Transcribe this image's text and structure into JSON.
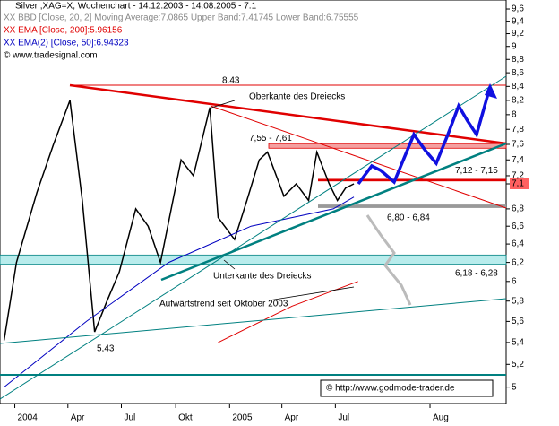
{
  "chart_data": {
    "type": "line",
    "title": "Silver ,XAG=X, Wochenchart - 14.12.2003 - 14.08.2005 - 7.1",
    "legend": [
      {
        "text": "XX BBD [Close, 20, 2] Moving Average:7.0865 Upper Band:7.41745 Lower Band:6.75555",
        "color": "#999999"
      },
      {
        "text": "XX EMA [Close, 200]:5.96156",
        "color": "#e00000"
      },
      {
        "text": "XX EMA(2) [Close, 50]:6.94323",
        "color": "#0000c0"
      }
    ],
    "source": "© www.tradesignal.com",
    "copyright": "© http://www.godmode-trader.de",
    "log_scale": true,
    "xlim": [
      -1,
      122
    ],
    "ylim": [
      4.86,
      9.75
    ],
    "xticks": [
      {
        "value": 2.6,
        "label": "2004"
      },
      {
        "value": 15.5,
        "label": "Apr"
      },
      {
        "value": 28.5,
        "label": "Jul"
      },
      {
        "value": 41.7,
        "label": "Okt"
      },
      {
        "value": 54.8,
        "label": "2005"
      },
      {
        "value": 67.5,
        "label": "Apr"
      },
      {
        "value": 80.5,
        "label": "Jul"
      },
      {
        "value": 103.5,
        "label": "Aug"
      }
    ],
    "yticks": [
      5,
      {
        "value": 5.2,
        "label": "5,2"
      },
      {
        "value": 5.4,
        "label": "5,4"
      },
      {
        "value": 5.6,
        "label": "5,6"
      },
      {
        "value": 5.8,
        "label": "5,8"
      },
      6,
      {
        "value": 6.2,
        "label": "6,2"
      },
      {
        "value": 6.4,
        "label": "6,4"
      },
      {
        "value": 6.6,
        "label": "6,6"
      },
      {
        "value": 6.8,
        "label": "6,8"
      },
      {
        "value": 7.1,
        "label": "7,1"
      },
      {
        "value": 7.2,
        "label": "7,2"
      },
      {
        "value": 7.4,
        "label": "7,4"
      },
      {
        "value": 7.6,
        "label": "7,6"
      },
      {
        "value": 7.8,
        "label": "7,8"
      },
      8,
      {
        "value": 8.2,
        "label": "8,2"
      },
      {
        "value": 8.4,
        "label": "8,4"
      },
      {
        "value": 8.6,
        "label": "8,6"
      },
      {
        "value": 8.8,
        "label": "8,8"
      },
      9,
      {
        "value": 9.2,
        "label": "9,2"
      },
      {
        "value": 9.4,
        "label": "9,4"
      },
      {
        "value": 9.6,
        "label": "9,6"
      }
    ],
    "series": [
      {
        "name": "Silver",
        "color": "#000000",
        "x": [
          0,
          3,
          8,
          12,
          16,
          19,
          22,
          25,
          28,
          32,
          35,
          38,
          43,
          46,
          50,
          52,
          56,
          59,
          62,
          64,
          68,
          71,
          74,
          76,
          79,
          81,
          83,
          85
        ],
        "values": [
          5.42,
          6.2,
          7.0,
          7.6,
          8.2,
          6.9,
          5.5,
          5.8,
          6.1,
          6.8,
          6.6,
          6.2,
          7.4,
          7.2,
          8.1,
          6.7,
          6.45,
          6.9,
          7.4,
          7.5,
          6.95,
          7.1,
          6.9,
          7.5,
          7.1,
          6.9,
          7.05,
          7.1
        ]
      },
      {
        "name": "EMA 50",
        "color": "#0000c0",
        "x": [
          0,
          20,
          40,
          60,
          80,
          85
        ],
        "values": [
          5.0,
          5.6,
          6.2,
          6.6,
          6.8,
          6.94
        ]
      },
      {
        "name": "EMA 200",
        "color": "#e00000",
        "x": [
          52,
          70,
          86
        ],
        "values": [
          5.4,
          5.75,
          6.0
        ]
      }
    ],
    "zones": [
      {
        "label": "7,55 - 7,61",
        "low": 7.55,
        "high": 7.61,
        "color": "#f4a0a0"
      },
      {
        "label": "6,18 - 6,28",
        "low": 6.18,
        "high": 6.28,
        "color": "#b8ecec"
      },
      {
        "label": "7,12 - 7,15",
        "low": 7.12,
        "high": 7.15,
        "color": "#e00000"
      },
      {
        "label": "6,80 - 6,84",
        "low": 6.8,
        "high": 6.84,
        "color": "#999999"
      }
    ],
    "annotations": {
      "high": "8.43",
      "low": "5,43",
      "upper": "Oberkante des Dreiecks",
      "lower": "Unterkante des Dreiecks",
      "trend": "Aufwärtstrend seit Oktober 2003"
    }
  }
}
